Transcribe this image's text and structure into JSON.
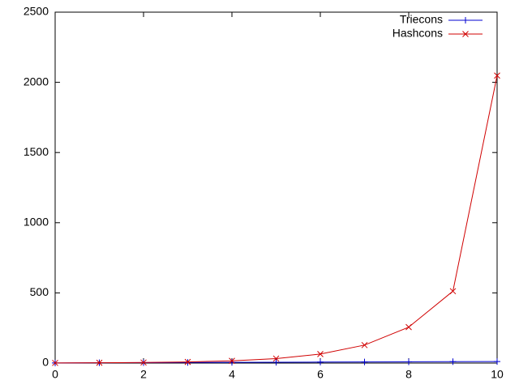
{
  "chart_data": {
    "type": "line",
    "x": [
      0,
      1,
      2,
      3,
      4,
      5,
      6,
      7,
      8,
      9,
      10
    ],
    "series": [
      {
        "name": "Triecons",
        "color": "#0000d0",
        "marker": "plus",
        "values": [
          1,
          2,
          3,
          4,
          5,
          6,
          7,
          8,
          9,
          10,
          11
        ]
      },
      {
        "name": "Hashcons",
        "color": "#d00000",
        "marker": "cross",
        "values": [
          1,
          2,
          4,
          8,
          16,
          32,
          64,
          128,
          256,
          512,
          2048
        ]
      }
    ],
    "xlim": [
      0,
      10
    ],
    "xticks": [
      0,
      2,
      4,
      6,
      8,
      10
    ],
    "ylim": [
      0,
      2500
    ],
    "yticks": [
      0,
      500,
      1000,
      1500,
      2000,
      2500
    ],
    "legend": "top-right"
  }
}
